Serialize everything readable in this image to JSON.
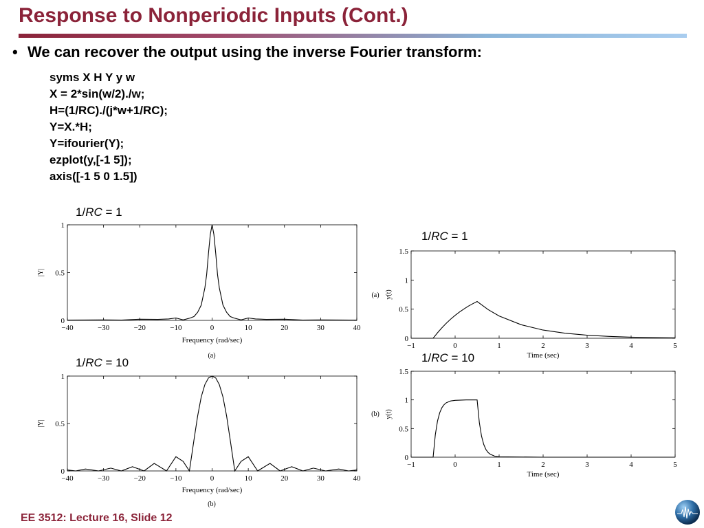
{
  "slide": {
    "title": "Response to Nonperiodic Inputs (Cont.)",
    "bullet": "We can recover the output using the inverse Fourier transform:",
    "code": [
      "syms X H Y y w",
      "X = 2*sin(w/2)./w;",
      "H=(1/RC)./(j*w+1/RC);",
      "Y=X.*H;",
      "Y=ifourier(Y);",
      "ezplot(y,[-1 5]);",
      "axis([-1 5 0 1.5])"
    ],
    "footer": "EE 3512: Lecture 16, Slide 12"
  },
  "labels": {
    "freq_a_param": {
      "prefix": "1/",
      "var": "RC",
      "suffix": " = 1"
    },
    "freq_b_param": {
      "prefix": "1/",
      "var": "RC",
      "suffix": " = 10"
    },
    "time_a_param": {
      "prefix": "1/",
      "var": "RC",
      "suffix": " = 1"
    },
    "time_b_param": {
      "prefix": "1/",
      "var": "RC",
      "suffix": " = 10"
    }
  },
  "colors": {
    "title": "#8b2339",
    "footer": "#8b2339",
    "rule_start": "#8b2339",
    "rule_end": "#a9cdef"
  },
  "chart_data": [
    {
      "id": "freq_a",
      "type": "line",
      "xlabel": "Frequency (rad/sec)",
      "ylabel": "|Y|",
      "caption": "(a)",
      "xlim": [
        -40,
        40
      ],
      "ylim": [
        0,
        1
      ],
      "xticks": [
        -40,
        -30,
        -20,
        -10,
        0,
        10,
        20,
        30,
        40
      ],
      "xtick_labels": [
        "−40",
        "−30",
        "−20",
        "−10",
        "0",
        "10",
        "20",
        "30",
        "40"
      ],
      "yticks": [
        0,
        0.5,
        1
      ],
      "ytick_labels": [
        "0",
        "0.5",
        "1"
      ],
      "x": [
        -40,
        -30,
        -25,
        -20,
        -15,
        -12,
        -10,
        -8,
        -6,
        -5,
        -4,
        -3,
        -2,
        -1.5,
        -1,
        -0.5,
        0,
        0.5,
        1,
        1.5,
        2,
        3,
        4,
        5,
        6,
        8,
        10,
        12,
        15,
        20,
        25,
        30,
        40
      ],
      "y": [
        0.003,
        0.005,
        0.003,
        0.012,
        0.01,
        0.015,
        0.025,
        0.005,
        0.025,
        0.04,
        0.085,
        0.16,
        0.34,
        0.48,
        0.7,
        0.9,
        1.0,
        0.9,
        0.7,
        0.48,
        0.34,
        0.16,
        0.085,
        0.04,
        0.025,
        0.005,
        0.025,
        0.015,
        0.01,
        0.012,
        0.003,
        0.005,
        0.003
      ]
    },
    {
      "id": "freq_b",
      "type": "line",
      "xlabel": "Frequency (rad/sec)",
      "ylabel": "|Y|",
      "caption": "(b)",
      "xlim": [
        -40,
        40
      ],
      "ylim": [
        0,
        1
      ],
      "xticks": [
        -40,
        -30,
        -20,
        -10,
        0,
        10,
        20,
        30,
        40
      ],
      "xtick_labels": [
        "−40",
        "−30",
        "−20",
        "−10",
        "0",
        "10",
        "20",
        "30",
        "40"
      ],
      "yticks": [
        0,
        0.5,
        1
      ],
      "ytick_labels": [
        "0",
        "0.5",
        "1"
      ],
      "x": [
        -40,
        -37.7,
        -35,
        -31.4,
        -28,
        -25.1,
        -22,
        -18.8,
        -16,
        -12.6,
        -10,
        -8,
        -6.28,
        -5,
        -4,
        -3,
        -2,
        -1,
        0,
        1,
        2,
        3,
        4,
        5,
        6.28,
        8,
        10,
        12.6,
        16,
        18.8,
        22,
        25.1,
        28,
        31.4,
        35,
        37.7,
        40
      ],
      "y": [
        0.01,
        0.0,
        0.02,
        0.0,
        0.03,
        0.0,
        0.045,
        0.0,
        0.08,
        0.0,
        0.15,
        0.1,
        0.0,
        0.33,
        0.58,
        0.78,
        0.91,
        0.98,
        1.0,
        0.98,
        0.91,
        0.78,
        0.58,
        0.33,
        0.0,
        0.1,
        0.15,
        0.0,
        0.08,
        0.0,
        0.045,
        0.0,
        0.03,
        0.0,
        0.02,
        0.0,
        0.01
      ]
    },
    {
      "id": "time_a",
      "type": "line",
      "xlabel": "Time (sec)",
      "ylabel": "y(t)",
      "caption": "(a)",
      "xlim": [
        -1,
        5
      ],
      "ylim": [
        0,
        1.5
      ],
      "xticks": [
        -1,
        0,
        1,
        2,
        3,
        4,
        5
      ],
      "xtick_labels": [
        "−1",
        "0",
        "1",
        "2",
        "3",
        "4",
        "5"
      ],
      "yticks": [
        0,
        0.5,
        1,
        1.5
      ],
      "ytick_labels": [
        "0",
        "0.5",
        "1",
        "1.5"
      ],
      "x": [
        -1,
        -0.5,
        -0.4,
        -0.3,
        -0.2,
        -0.1,
        0,
        0.1,
        0.2,
        0.3,
        0.4,
        0.5,
        0.75,
        1,
        1.5,
        2,
        2.5,
        3,
        3.5,
        4,
        4.5,
        5
      ],
      "y": [
        0,
        0,
        0.095,
        0.181,
        0.259,
        0.33,
        0.393,
        0.451,
        0.503,
        0.551,
        0.593,
        0.632,
        0.492,
        0.383,
        0.233,
        0.141,
        0.086,
        0.052,
        0.032,
        0.019,
        0.012,
        0.007
      ]
    },
    {
      "id": "time_b",
      "type": "line",
      "xlabel": "Time (sec)",
      "ylabel": "y(t)",
      "caption": "(b)",
      "xlim": [
        -1,
        5
      ],
      "ylim": [
        0,
        1.5
      ],
      "xticks": [
        -1,
        0,
        1,
        2,
        3,
        4,
        5
      ],
      "xtick_labels": [
        "−1",
        "0",
        "1",
        "2",
        "3",
        "4",
        "5"
      ],
      "yticks": [
        0,
        0.5,
        1,
        1.5
      ],
      "ytick_labels": [
        "0",
        "0.5",
        "1",
        "1.5"
      ],
      "x": [
        -1,
        -0.5,
        -0.45,
        -0.4,
        -0.35,
        -0.3,
        -0.25,
        -0.2,
        -0.1,
        0,
        0.25,
        0.5,
        0.55,
        0.6,
        0.65,
        0.7,
        0.75,
        0.8,
        0.9,
        1,
        2,
        3,
        4,
        5
      ],
      "y": [
        0,
        0,
        0.393,
        0.632,
        0.777,
        0.865,
        0.918,
        0.95,
        0.982,
        0.993,
        1.0,
        1.0,
        0.607,
        0.368,
        0.223,
        0.135,
        0.082,
        0.05,
        0.018,
        0.007,
        0,
        0,
        0,
        0
      ]
    }
  ]
}
